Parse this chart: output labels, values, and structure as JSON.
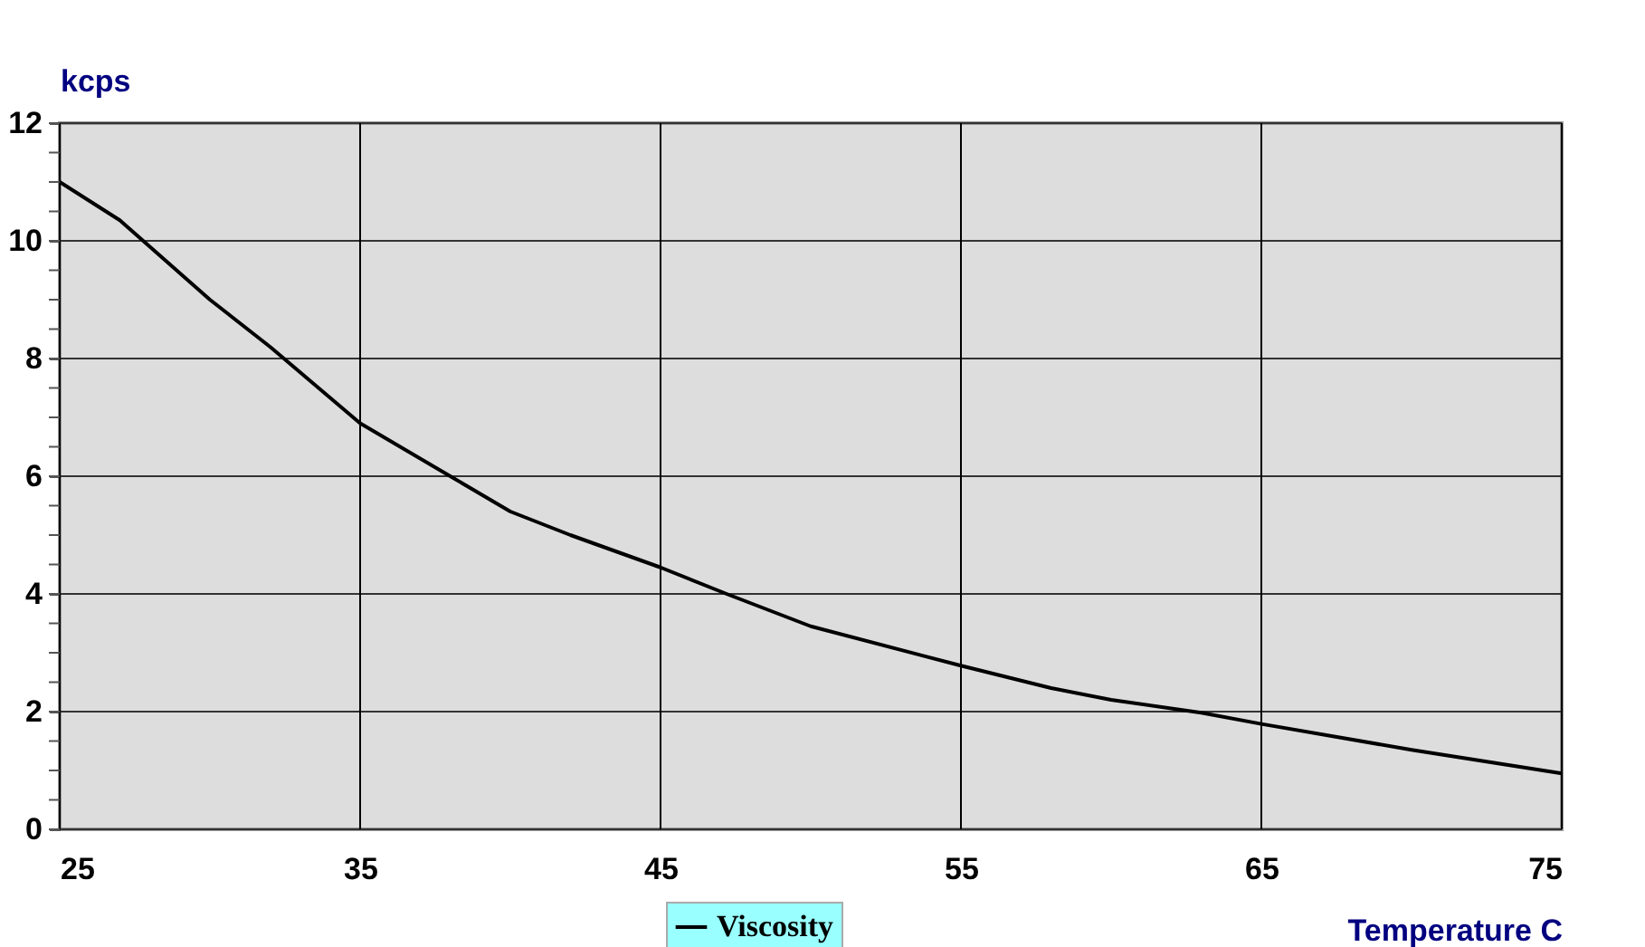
{
  "chart_data": {
    "type": "line",
    "xlabel": "Temperature  C",
    "ylabel": "kcps",
    "x": [
      25,
      27,
      30,
      32,
      35,
      38,
      40,
      42,
      45,
      47.2,
      50,
      55,
      58,
      60,
      63,
      65,
      70,
      75
    ],
    "series": [
      {
        "name": "Viscosity",
        "color": "#000000",
        "values": [
          11.0,
          10.35,
          9.0,
          8.2,
          6.9,
          6.0,
          5.4,
          5.0,
          4.45,
          4.0,
          3.45,
          2.78,
          2.4,
          2.2,
          1.98,
          1.79,
          1.35,
          0.95
        ]
      }
    ],
    "xlim": [
      25,
      75
    ],
    "xticks": [
      25,
      35,
      45,
      55,
      65,
      75
    ],
    "ylim": [
      0,
      12
    ],
    "yticks": [
      0,
      {
        "value": 0.5,
        "label": null
      },
      {
        "value": 1,
        "label": null
      },
      {
        "value": 1.5,
        "label": null
      },
      2,
      {
        "value": 2.5,
        "label": null
      },
      {
        "value": 3,
        "label": null
      },
      {
        "value": 3.5,
        "label": null
      },
      4,
      {
        "value": 4.5,
        "label": null
      },
      {
        "value": 5,
        "label": null
      },
      {
        "value": 5.5,
        "label": null
      },
      6,
      {
        "value": 6.5,
        "label": null
      },
      {
        "value": 7,
        "label": null
      },
      {
        "value": 7.5,
        "label": null
      },
      8,
      {
        "value": 8.5,
        "label": null
      },
      {
        "value": 9,
        "label": null
      },
      {
        "value": 9.5,
        "label": null
      },
      10,
      {
        "value": 10.5,
        "label": null
      },
      {
        "value": 11,
        "label": null
      },
      {
        "value": 11.5,
        "label": null
      },
      12
    ],
    "grid": true,
    "legend": "bottom",
    "marker": "none",
    "line_style": "solid"
  }
}
